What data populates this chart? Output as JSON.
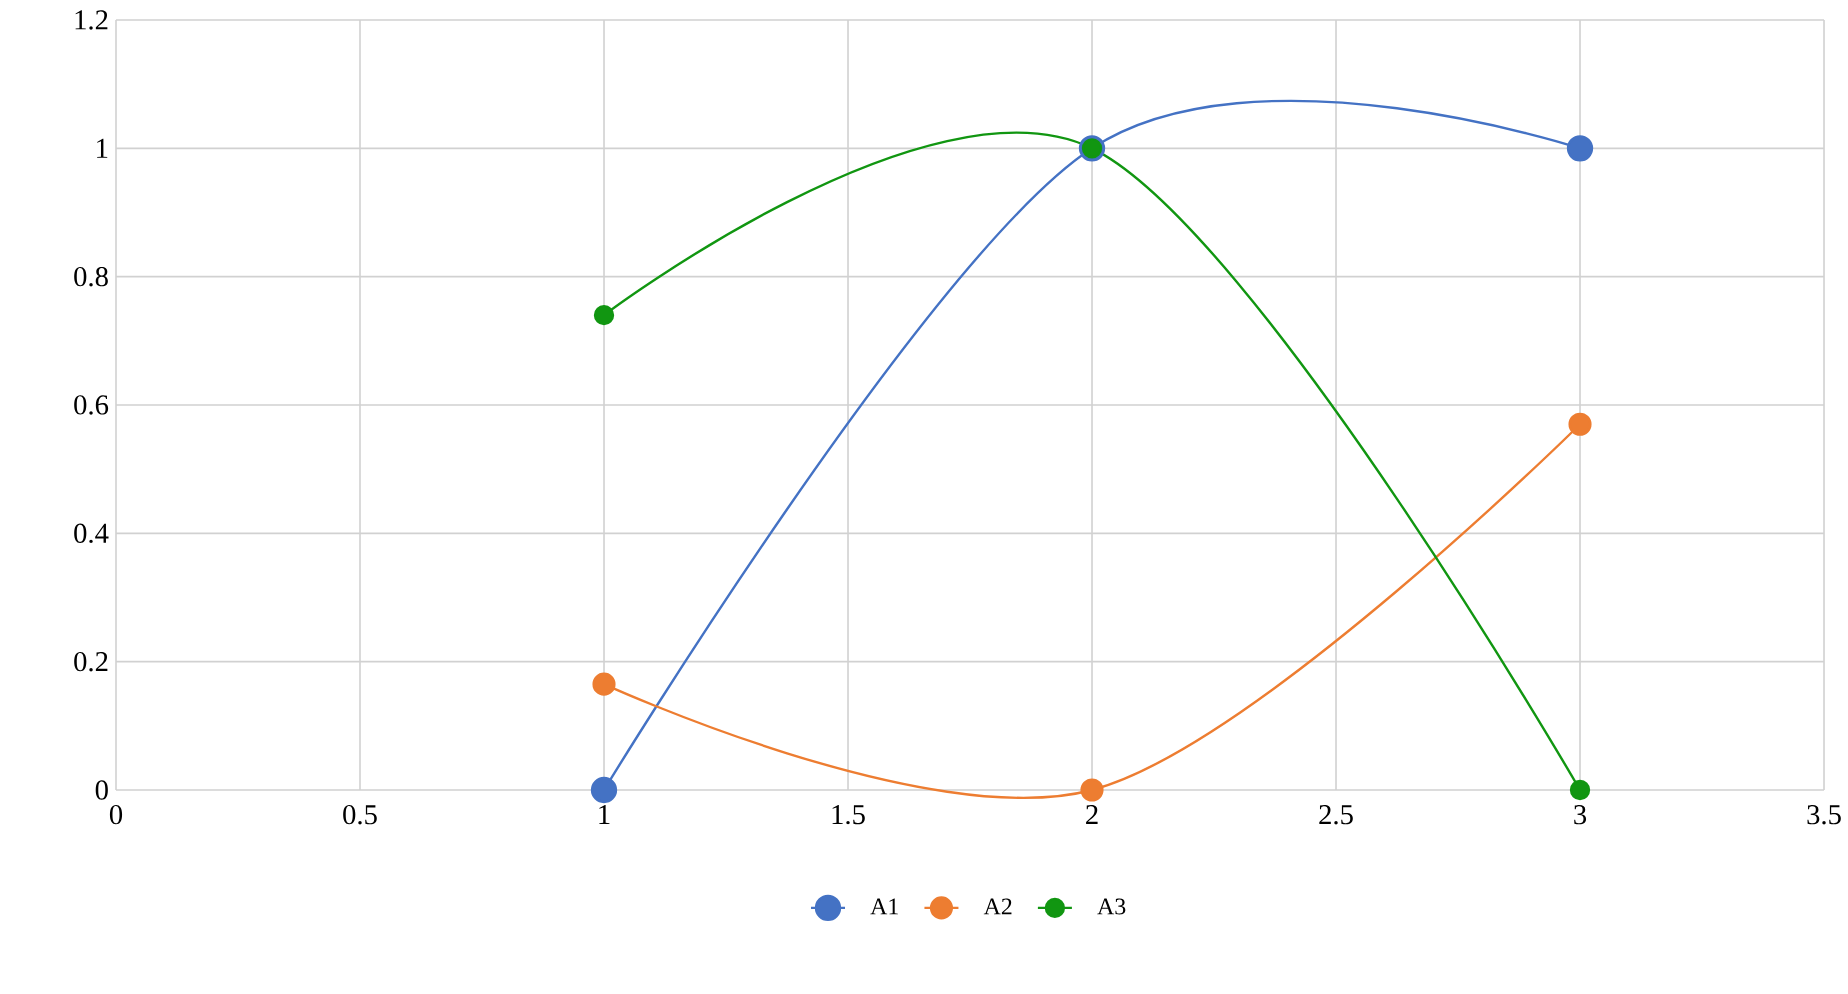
{
  "chart_data": {
    "type": "line",
    "x": [
      1,
      2,
      3
    ],
    "series": [
      {
        "name": "A1",
        "color": "#4472c4",
        "values": [
          0,
          1,
          1
        ]
      },
      {
        "name": "A2",
        "color": "#ed7d31",
        "values": [
          0.165,
          0,
          0.57
        ]
      },
      {
        "name": "A3",
        "color": "#119611",
        "values": [
          0.74,
          1,
          0
        ]
      }
    ],
    "xlim": [
      0,
      3.5
    ],
    "xticks": [
      0,
      0.5,
      1,
      1.5,
      2,
      2.5,
      3,
      3.5
    ],
    "ylim": [
      0,
      1.2
    ],
    "yticks": [
      0,
      0.2,
      0.4,
      0.6,
      0.8,
      1,
      1.2
    ],
    "grid": true,
    "legend": "bottom",
    "marker": "circle",
    "line_style": "solid"
  }
}
